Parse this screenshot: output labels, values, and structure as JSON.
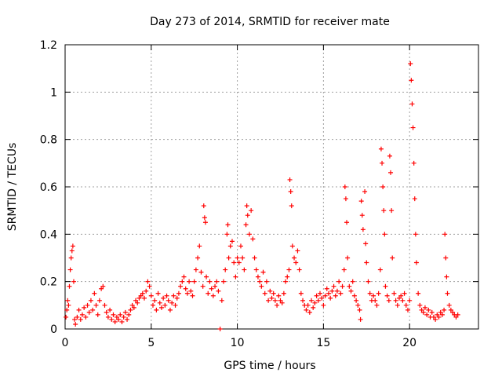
{
  "chart_data": {
    "type": "scatter",
    "title": "Day 273 of 2014, SRMTID for receiver mate",
    "xlabel": "GPS time / hours",
    "ylabel": "SRMTID / TECUs",
    "xlim": [
      0,
      24
    ],
    "ylim": [
      0,
      1.2
    ],
    "x_ticks": [
      0,
      5,
      10,
      15,
      20
    ],
    "x_tick_labels": [
      "0",
      "5",
      "10",
      "15",
      "20"
    ],
    "y_ticks": [
      0,
      0.2,
      0.4,
      0.6,
      0.8,
      1,
      1.2
    ],
    "y_tick_labels": [
      "0",
      "0.2",
      "0.4",
      "0.6",
      "0.8",
      "1",
      "1.2"
    ],
    "grid": true,
    "marker": "+",
    "marker_color": "#ff0000",
    "series": [
      {
        "name": "SRMTID",
        "points": [
          [
            0.05,
            0.05
          ],
          [
            0.1,
            0.08
          ],
          [
            0.15,
            0.12
          ],
          [
            0.2,
            0.1
          ],
          [
            0.25,
            0.18
          ],
          [
            0.3,
            0.25
          ],
          [
            0.35,
            0.3
          ],
          [
            0.4,
            0.33
          ],
          [
            0.45,
            0.35
          ],
          [
            0.5,
            0.2
          ],
          [
            0.55,
            0.04
          ],
          [
            0.6,
            0.02
          ],
          [
            0.7,
            0.05
          ],
          [
            0.8,
            0.08
          ],
          [
            0.9,
            0.04
          ],
          [
            1.0,
            0.06
          ],
          [
            1.1,
            0.09
          ],
          [
            1.2,
            0.05
          ],
          [
            1.3,
            0.1
          ],
          [
            1.4,
            0.07
          ],
          [
            1.5,
            0.12
          ],
          [
            1.6,
            0.08
          ],
          [
            1.7,
            0.15
          ],
          [
            1.8,
            0.1
          ],
          [
            1.9,
            0.06
          ],
          [
            2.0,
            0.12
          ],
          [
            2.1,
            0.17
          ],
          [
            2.2,
            0.18
          ],
          [
            2.3,
            0.1
          ],
          [
            2.4,
            0.07
          ],
          [
            2.5,
            0.05
          ],
          [
            2.6,
            0.08
          ],
          [
            2.7,
            0.04
          ],
          [
            2.8,
            0.06
          ],
          [
            2.9,
            0.03
          ],
          [
            3.0,
            0.05
          ],
          [
            3.1,
            0.04
          ],
          [
            3.2,
            0.06
          ],
          [
            3.3,
            0.03
          ],
          [
            3.4,
            0.05
          ],
          [
            3.5,
            0.07
          ],
          [
            3.6,
            0.04
          ],
          [
            3.7,
            0.06
          ],
          [
            3.8,
            0.08
          ],
          [
            3.9,
            0.1
          ],
          [
            4.0,
            0.09
          ],
          [
            4.1,
            0.12
          ],
          [
            4.2,
            0.11
          ],
          [
            4.3,
            0.13
          ],
          [
            4.4,
            0.14
          ],
          [
            4.5,
            0.15
          ],
          [
            4.6,
            0.13
          ],
          [
            4.7,
            0.16
          ],
          [
            4.8,
            0.2
          ],
          [
            4.9,
            0.18
          ],
          [
            5.0,
            0.14
          ],
          [
            5.1,
            0.1
          ],
          [
            5.2,
            0.12
          ],
          [
            5.3,
            0.08
          ],
          [
            5.4,
            0.15
          ],
          [
            5.5,
            0.11
          ],
          [
            5.6,
            0.09
          ],
          [
            5.7,
            0.13
          ],
          [
            5.8,
            0.1
          ],
          [
            5.9,
            0.14
          ],
          [
            6.0,
            0.12
          ],
          [
            6.1,
            0.08
          ],
          [
            6.2,
            0.11
          ],
          [
            6.3,
            0.14
          ],
          [
            6.4,
            0.1
          ],
          [
            6.5,
            0.13
          ],
          [
            6.6,
            0.15
          ],
          [
            6.7,
            0.18
          ],
          [
            6.8,
            0.2
          ],
          [
            6.9,
            0.22
          ],
          [
            7.0,
            0.17
          ],
          [
            7.1,
            0.15
          ],
          [
            7.2,
            0.2
          ],
          [
            7.3,
            0.16
          ],
          [
            7.4,
            0.14
          ],
          [
            7.5,
            0.2
          ],
          [
            7.6,
            0.25
          ],
          [
            7.7,
            0.3
          ],
          [
            7.8,
            0.35
          ],
          [
            7.9,
            0.24
          ],
          [
            8.0,
            0.18
          ],
          [
            8.05,
            0.52
          ],
          [
            8.1,
            0.47
          ],
          [
            8.15,
            0.45
          ],
          [
            8.2,
            0.22
          ],
          [
            8.3,
            0.15
          ],
          [
            8.4,
            0.2
          ],
          [
            8.5,
            0.17
          ],
          [
            8.6,
            0.14
          ],
          [
            8.7,
            0.18
          ],
          [
            8.8,
            0.2
          ],
          [
            8.9,
            0.16
          ],
          [
            9.0,
            0.0
          ],
          [
            9.1,
            0.12
          ],
          [
            9.2,
            0.2
          ],
          [
            9.3,
            0.25
          ],
          [
            9.4,
            0.4
          ],
          [
            9.45,
            0.44
          ],
          [
            9.5,
            0.3
          ],
          [
            9.6,
            0.35
          ],
          [
            9.7,
            0.37
          ],
          [
            9.8,
            0.28
          ],
          [
            9.9,
            0.22
          ],
          [
            10.0,
            0.3
          ],
          [
            10.1,
            0.28
          ],
          [
            10.2,
            0.35
          ],
          [
            10.3,
            0.3
          ],
          [
            10.4,
            0.25
          ],
          [
            10.5,
            0.44
          ],
          [
            10.55,
            0.52
          ],
          [
            10.6,
            0.48
          ],
          [
            10.7,
            0.4
          ],
          [
            10.8,
            0.5
          ],
          [
            10.9,
            0.38
          ],
          [
            11.0,
            0.3
          ],
          [
            11.1,
            0.25
          ],
          [
            11.2,
            0.22
          ],
          [
            11.3,
            0.2
          ],
          [
            11.4,
            0.18
          ],
          [
            11.5,
            0.24
          ],
          [
            11.6,
            0.15
          ],
          [
            11.7,
            0.2
          ],
          [
            11.8,
            0.12
          ],
          [
            11.9,
            0.16
          ],
          [
            12.0,
            0.13
          ],
          [
            12.1,
            0.15
          ],
          [
            12.2,
            0.12
          ],
          [
            12.3,
            0.1
          ],
          [
            12.4,
            0.14
          ],
          [
            12.5,
            0.12
          ],
          [
            12.6,
            0.11
          ],
          [
            12.7,
            0.15
          ],
          [
            12.8,
            0.2
          ],
          [
            12.9,
            0.22
          ],
          [
            13.0,
            0.25
          ],
          [
            13.05,
            0.63
          ],
          [
            13.1,
            0.58
          ],
          [
            13.15,
            0.52
          ],
          [
            13.2,
            0.35
          ],
          [
            13.3,
            0.3
          ],
          [
            13.4,
            0.28
          ],
          [
            13.5,
            0.33
          ],
          [
            13.6,
            0.25
          ],
          [
            13.7,
            0.15
          ],
          [
            13.8,
            0.12
          ],
          [
            13.9,
            0.1
          ],
          [
            14.0,
            0.08
          ],
          [
            14.1,
            0.1
          ],
          [
            14.2,
            0.07
          ],
          [
            14.3,
            0.12
          ],
          [
            14.4,
            0.09
          ],
          [
            14.5,
            0.11
          ],
          [
            14.6,
            0.14
          ],
          [
            14.7,
            0.12
          ],
          [
            14.8,
            0.15
          ],
          [
            14.9,
            0.13
          ],
          [
            15.0,
            0.1
          ],
          [
            15.1,
            0.14
          ],
          [
            15.2,
            0.17
          ],
          [
            15.3,
            0.15
          ],
          [
            15.4,
            0.13
          ],
          [
            15.5,
            0.16
          ],
          [
            15.6,
            0.18
          ],
          [
            15.7,
            0.14
          ],
          [
            15.8,
            0.16
          ],
          [
            15.9,
            0.2
          ],
          [
            16.0,
            0.15
          ],
          [
            16.1,
            0.18
          ],
          [
            16.2,
            0.25
          ],
          [
            16.25,
            0.6
          ],
          [
            16.3,
            0.55
          ],
          [
            16.35,
            0.45
          ],
          [
            16.4,
            0.3
          ],
          [
            16.5,
            0.18
          ],
          [
            16.6,
            0.16
          ],
          [
            16.7,
            0.2
          ],
          [
            16.8,
            0.14
          ],
          [
            16.9,
            0.12
          ],
          [
            17.0,
            0.1
          ],
          [
            17.1,
            0.08
          ],
          [
            17.15,
            0.04
          ],
          [
            17.2,
            0.54
          ],
          [
            17.25,
            0.48
          ],
          [
            17.3,
            0.42
          ],
          [
            17.4,
            0.58
          ],
          [
            17.45,
            0.36
          ],
          [
            17.5,
            0.28
          ],
          [
            17.6,
            0.2
          ],
          [
            17.7,
            0.15
          ],
          [
            17.8,
            0.12
          ],
          [
            17.9,
            0.14
          ],
          [
            18.0,
            0.12
          ],
          [
            18.1,
            0.1
          ],
          [
            18.2,
            0.15
          ],
          [
            18.3,
            0.25
          ],
          [
            18.35,
            0.76
          ],
          [
            18.4,
            0.7
          ],
          [
            18.45,
            0.6
          ],
          [
            18.5,
            0.5
          ],
          [
            18.55,
            0.4
          ],
          [
            18.6,
            0.18
          ],
          [
            18.7,
            0.14
          ],
          [
            18.8,
            0.12
          ],
          [
            18.85,
            0.73
          ],
          [
            18.9,
            0.66
          ],
          [
            18.95,
            0.5
          ],
          [
            19.0,
            0.3
          ],
          [
            19.1,
            0.15
          ],
          [
            19.2,
            0.12
          ],
          [
            19.3,
            0.1
          ],
          [
            19.4,
            0.13
          ],
          [
            19.5,
            0.14
          ],
          [
            19.6,
            0.12
          ],
          [
            19.7,
            0.15
          ],
          [
            19.8,
            0.1
          ],
          [
            19.9,
            0.08
          ],
          [
            20.0,
            0.12
          ],
          [
            20.05,
            1.12
          ],
          [
            20.1,
            1.05
          ],
          [
            20.15,
            0.95
          ],
          [
            20.2,
            0.85
          ],
          [
            20.25,
            0.7
          ],
          [
            20.3,
            0.55
          ],
          [
            20.35,
            0.4
          ],
          [
            20.4,
            0.28
          ],
          [
            20.5,
            0.15
          ],
          [
            20.6,
            0.1
          ],
          [
            20.7,
            0.08
          ],
          [
            20.8,
            0.07
          ],
          [
            20.9,
            0.09
          ],
          [
            21.0,
            0.06
          ],
          [
            21.1,
            0.08
          ],
          [
            21.2,
            0.05
          ],
          [
            21.3,
            0.07
          ],
          [
            21.4,
            0.05
          ],
          [
            21.5,
            0.04
          ],
          [
            21.6,
            0.06
          ],
          [
            21.7,
            0.05
          ],
          [
            21.8,
            0.07
          ],
          [
            21.9,
            0.06
          ],
          [
            22.0,
            0.08
          ],
          [
            22.05,
            0.4
          ],
          [
            22.1,
            0.3
          ],
          [
            22.15,
            0.22
          ],
          [
            22.2,
            0.15
          ],
          [
            22.3,
            0.1
          ],
          [
            22.4,
            0.08
          ],
          [
            22.5,
            0.07
          ],
          [
            22.6,
            0.06
          ],
          [
            22.7,
            0.05
          ],
          [
            22.8,
            0.06
          ]
        ]
      }
    ]
  }
}
